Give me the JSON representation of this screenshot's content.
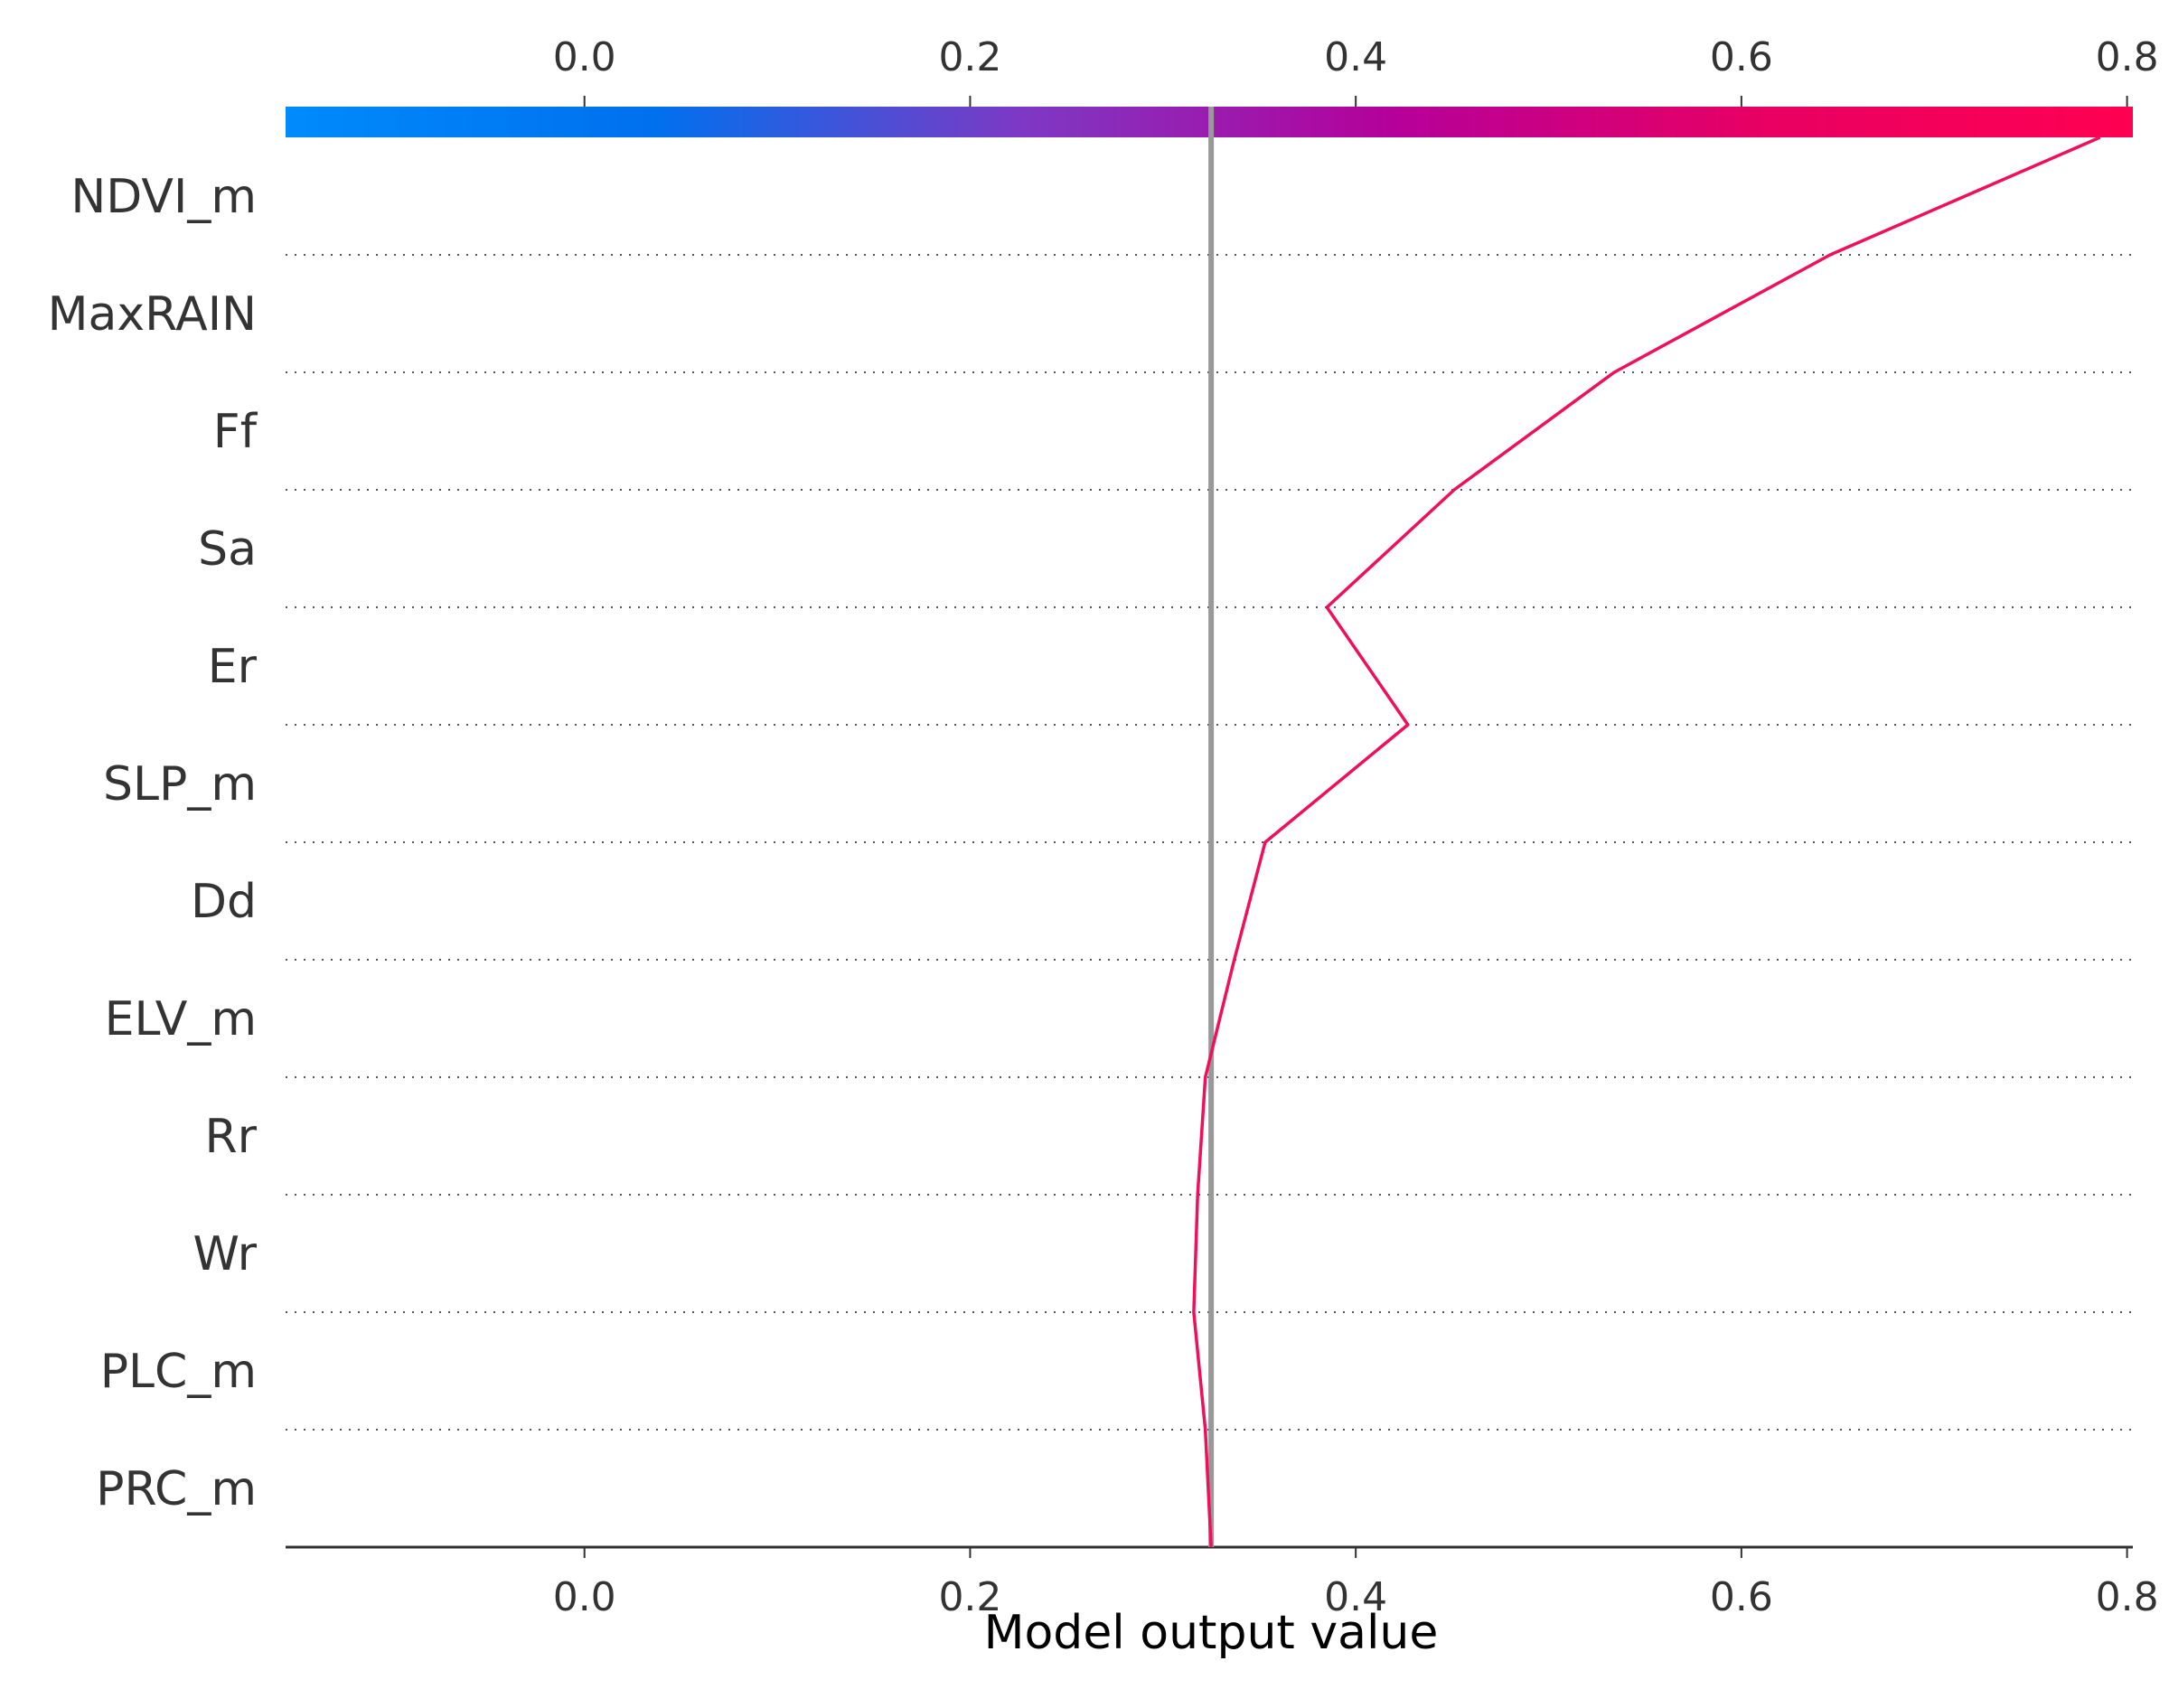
{
  "chart_data": {
    "type": "line",
    "subtype": "shap-decision-plot",
    "features": [
      "NDVI_m",
      "MaxRAIN",
      "Ff",
      "Sa",
      "Er",
      "SLP_m",
      "Dd",
      "ELV_m",
      "Rr",
      "Wr",
      "PLC_m",
      "PRC_m"
    ],
    "x_ticks": [
      "0.0",
      "0.2",
      "0.4",
      "0.6",
      "0.8"
    ],
    "xlim": [
      -0.155,
      0.803
    ],
    "xlabel": "Model output value",
    "base_value": 0.325,
    "path": {
      "bottom": 0.325,
      "after_feature": [
        0.786,
        0.646,
        0.534,
        0.451,
        0.385,
        0.427,
        0.353,
        0.337,
        0.322,
        0.318,
        0.316,
        0.322
      ]
    },
    "colorbar": {
      "colormap_stops": [
        "#008bfb",
        "#0070ee",
        "#7e38c4",
        "#b5009a",
        "#e80062",
        "#ff0052"
      ],
      "range": [
        -0.155,
        0.803
      ],
      "position": "top"
    },
    "grid": "dotted-horizontal",
    "line_color": "#f0105a",
    "base_line_color": "#999999"
  }
}
